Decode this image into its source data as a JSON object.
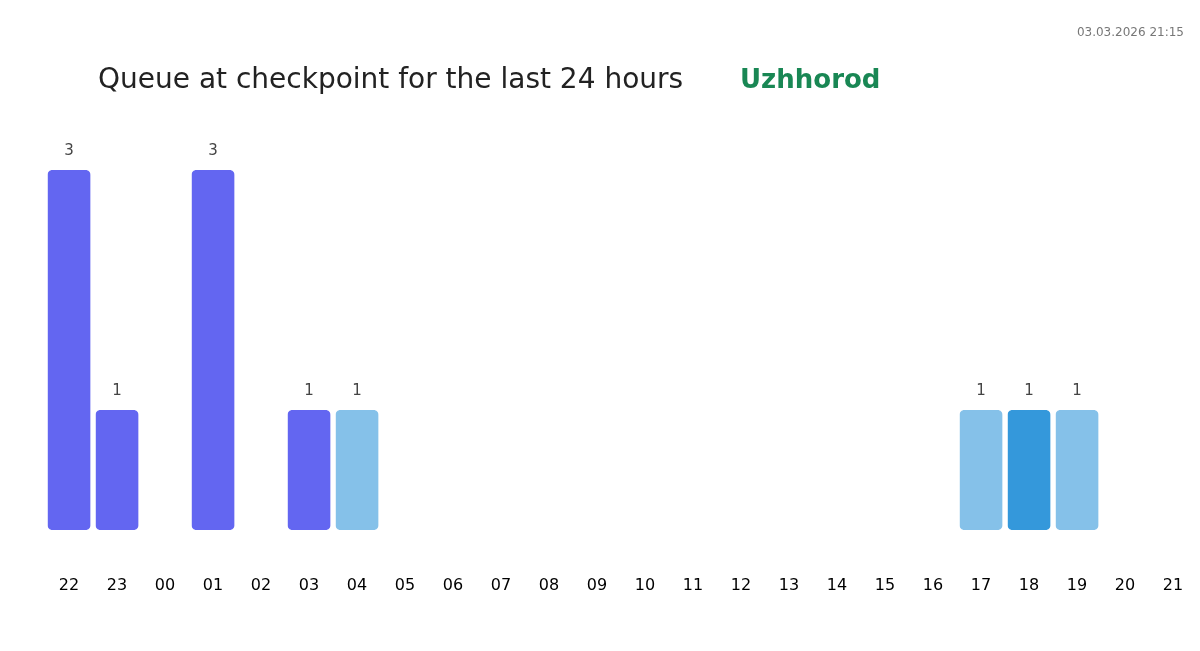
{
  "chart_data": {
    "type": "bar",
    "title": "Queue at checkpoint for the last 24 hours",
    "subtitle": "Uzhhorod",
    "annotations": [
      "03.03.2026 21:15"
    ],
    "categories": [
      "22",
      "23",
      "00",
      "01",
      "02",
      "03",
      "04",
      "05",
      "06",
      "07",
      "08",
      "09",
      "10",
      "11",
      "12",
      "13",
      "14",
      "15",
      "16",
      "17",
      "18",
      "19",
      "20",
      "21"
    ],
    "values": [
      3,
      1,
      null,
      3,
      null,
      1,
      1,
      null,
      null,
      null,
      null,
      null,
      null,
      null,
      null,
      null,
      null,
      null,
      null,
      1,
      1,
      1,
      null,
      null
    ],
    "colors": [
      "#6366f1",
      "#6366f1",
      null,
      "#6366f1",
      null,
      "#6366f1",
      "#85c1e9",
      null,
      null,
      null,
      null,
      null,
      null,
      null,
      null,
      null,
      null,
      null,
      null,
      "#85c1e9",
      "#3498db",
      "#85c1e9",
      null,
      null
    ],
    "data_labels": true,
    "tick_labels": "x",
    "grid": false
  }
}
